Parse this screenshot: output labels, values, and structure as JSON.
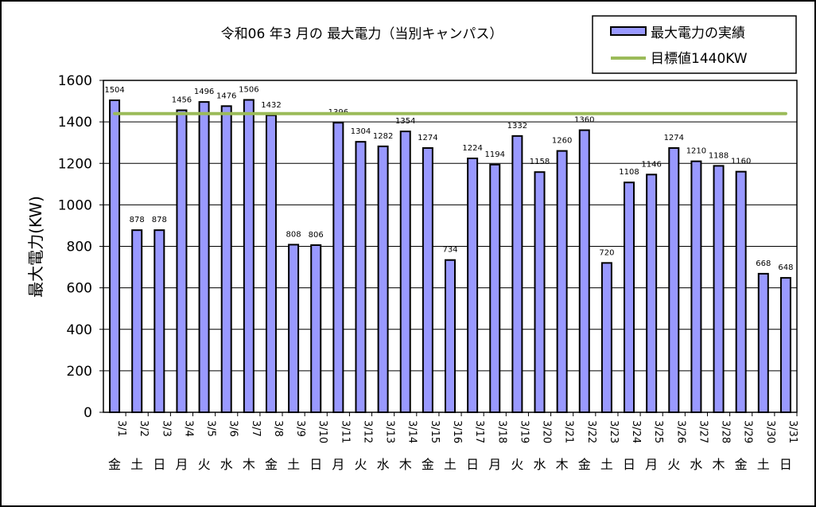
{
  "chart_data": {
    "type": "bar",
    "title": "令和06 年3 月の 最大電力（当別キャンパス）",
    "ylabel": "最大電力(KW)",
    "xlabel": "",
    "ylim": [
      0,
      1600
    ],
    "yticks": [
      "0",
      "200",
      "400",
      "600",
      "800",
      "1000",
      "1200",
      "1400",
      "1600"
    ],
    "grid": true,
    "legend_position": "top-right",
    "categories": [
      "3/1",
      "3/2",
      "3/3",
      "3/4",
      "3/5",
      "3/6",
      "3/7",
      "3/8",
      "3/9",
      "3/10",
      "3/11",
      "3/12",
      "3/13",
      "3/14",
      "3/15",
      "3/16",
      "3/17",
      "3/18",
      "3/19",
      "3/20",
      "3/21",
      "3/22",
      "3/23",
      "3/24",
      "3/25",
      "3/26",
      "3/27",
      "3/28",
      "3/29",
      "3/30",
      "3/31"
    ],
    "weekdays": [
      "金",
      "土",
      "日",
      "月",
      "火",
      "水",
      "木",
      "金",
      "土",
      "日",
      "月",
      "火",
      "水",
      "木",
      "金",
      "土",
      "日",
      "月",
      "火",
      "水",
      "木",
      "金",
      "土",
      "日",
      "月",
      "火",
      "水",
      "木",
      "金",
      "土",
      "日"
    ],
    "series": [
      {
        "name": "最大電力の実績",
        "type": "bar",
        "color": "#9999ff",
        "values": [
          1504,
          878,
          878,
          1456,
          1496,
          1476,
          1506,
          1432,
          808,
          806,
          1396,
          1304,
          1282,
          1354,
          1274,
          734,
          1224,
          1194,
          1332,
          1158,
          1260,
          1360,
          720,
          1108,
          1146,
          1274,
          1210,
          1188,
          1160,
          668,
          648
        ]
      },
      {
        "name": "目標値1440KW",
        "type": "line",
        "color": "#9bbb59",
        "value": 1440
      }
    ]
  }
}
